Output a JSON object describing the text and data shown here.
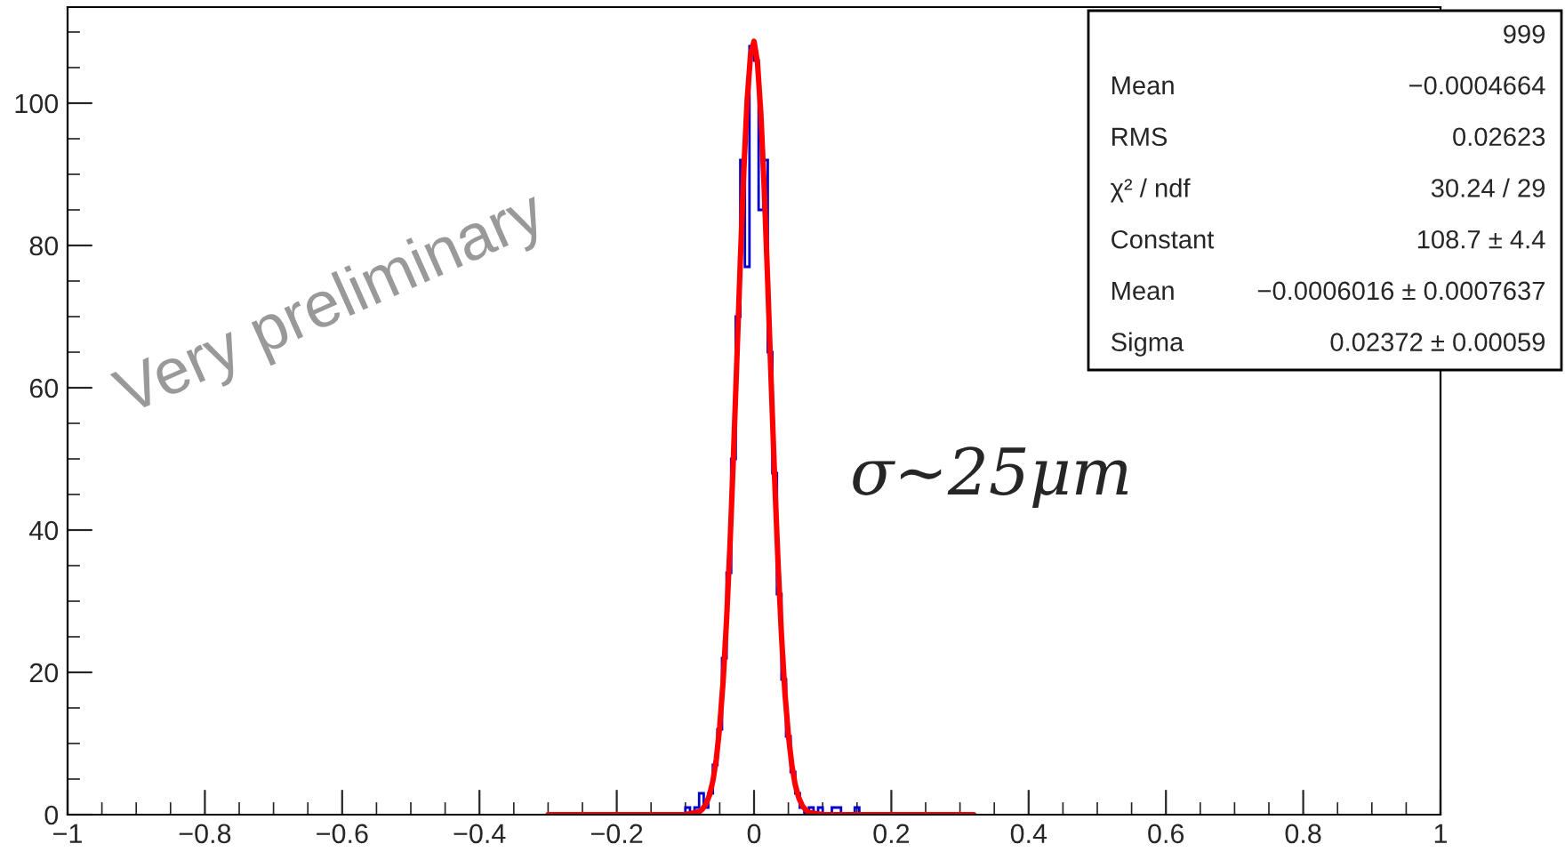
{
  "chart_data": {
    "type": "histogram",
    "xlim": [
      -1,
      1
    ],
    "xticks": [
      {
        "value": -1,
        "label": "−1"
      },
      {
        "value": -0.8,
        "label": "−0.8"
      },
      {
        "value": -0.6,
        "label": "−0.6"
      },
      {
        "value": -0.4,
        "label": "−0.4"
      },
      {
        "value": -0.2,
        "label": "−0.2"
      },
      0,
      0.2,
      0.4,
      0.6,
      0.8,
      1
    ],
    "ylim": [
      0,
      113.5
    ],
    "yticks": [
      0,
      20,
      40,
      60,
      80,
      100
    ],
    "series": [
      {
        "color": "#0000cc",
        "bins": [
          -0.1,
          -0.09333,
          -0.08667,
          -0.08,
          -0.07333,
          -0.06667,
          -0.06,
          -0.05333,
          -0.04667,
          -0.04,
          -0.03333,
          -0.02667,
          -0.02,
          -0.01333,
          -0.00667,
          0,
          0.00667,
          0.01333,
          0.02,
          0.02667,
          0.03333,
          0.04,
          0.04667,
          0.05333,
          0.06,
          0.06667,
          0.07333,
          0.08,
          0.08667,
          0.09333,
          0.1,
          0.10667,
          0.11333,
          0.12,
          0.12667,
          0.13333,
          0.14,
          0.14667,
          0.15333,
          0.16
        ],
        "values": [
          1,
          0,
          1,
          3,
          1,
          3,
          7,
          12,
          22,
          34,
          50,
          70,
          92,
          77,
          108,
          106,
          85,
          92,
          65,
          48,
          31,
          19,
          11,
          6,
          3,
          1,
          0,
          1,
          0,
          1,
          0,
          0,
          1,
          1,
          0,
          0,
          0,
          1,
          0
        ]
      },
      {
        "type": "line",
        "color": "#ff0000",
        "x": [
          -0.3,
          -0.1,
          -0.08,
          -0.075,
          -0.07,
          -0.065,
          -0.06,
          -0.055,
          -0.05,
          -0.045,
          -0.04,
          -0.035,
          -0.03,
          -0.025,
          -0.02,
          -0.015,
          -0.01,
          -0.005,
          0,
          0.005,
          0.01,
          0.015,
          0.02,
          0.025,
          0.03,
          0.035,
          0.04,
          0.045,
          0.05,
          0.055,
          0.06,
          0.065,
          0.07,
          0.075,
          0.08,
          0.1,
          0.32
        ],
        "values": [
          0,
          0,
          0.4,
          0.8,
          1.5,
          2.7,
          4.7,
          7.8,
          12.4,
          18.8,
          27.4,
          38,
          50.4,
          64,
          77.8,
          90.4,
          100.5,
          106.9,
          108.7,
          105.7,
          98.4,
          87.6,
          74.6,
          60.7,
          47.3,
          35.3,
          25.1,
          17.1,
          11.2,
          7,
          4.2,
          2.4,
          1.3,
          0.7,
          0.3,
          0,
          0
        ]
      }
    ],
    "annotations": [
      "Very preliminary",
      "σ~25μm",
      "999",
      "Mean",
      "−0.0004664",
      "RMS",
      "0.02623",
      "χ² / ndf",
      "30.24 / 29",
      "Constant",
      "108.7 ± 4.4",
      "Mean",
      "−0.0006016 ± 0.0007637",
      "Sigma",
      "0.02372 ± 0.00059"
    ]
  }
}
